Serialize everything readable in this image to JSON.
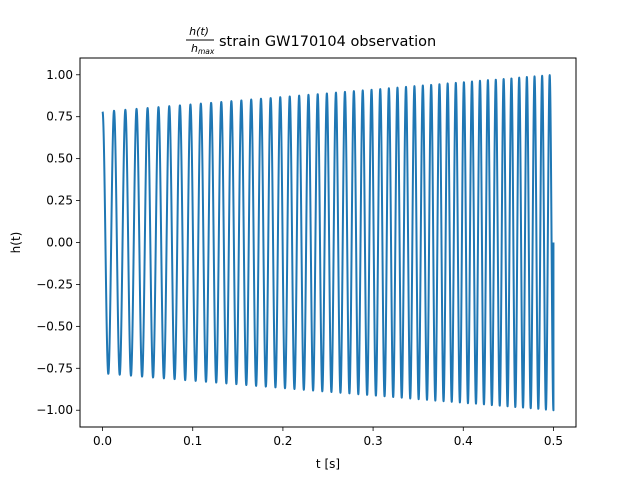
{
  "chart_data": {
    "type": "line",
    "title": {
      "numerator": "h(t)",
      "denominator_base": "h",
      "denominator_sub": "max",
      "text": "strain GW170104 observation"
    },
    "xlabel": "t [s]",
    "ylabel": "h(t)",
    "xlim": [
      -0.025,
      0.525
    ],
    "ylim": [
      -1.1,
      1.1
    ],
    "x_ticks": [
      0.0,
      0.1,
      0.2,
      0.3,
      0.4,
      0.5
    ],
    "x_tick_labels": [
      "0.0",
      "0.1",
      "0.2",
      "0.3",
      "0.4",
      "0.5"
    ],
    "y_ticks": [
      1.0,
      0.75,
      0.5,
      0.25,
      0.0,
      -0.25,
      -0.5,
      -0.75,
      -1.0
    ],
    "y_tick_labels": [
      "1.00",
      "0.75",
      "0.50",
      "0.25",
      "0.00",
      "−0.25",
      "−0.50",
      "−0.75",
      "−1.00"
    ],
    "grid": false,
    "series": [
      {
        "color": "#1f77b4",
        "model": "chirp",
        "x_range": [
          0.0,
          0.5
        ],
        "amplitude_start": 0.78,
        "amplitude_end": 1.0,
        "frequency_start_hz": 78,
        "frequency_end_hz": 120,
        "start_value": 0.78,
        "end_value": 0.0
      }
    ]
  }
}
